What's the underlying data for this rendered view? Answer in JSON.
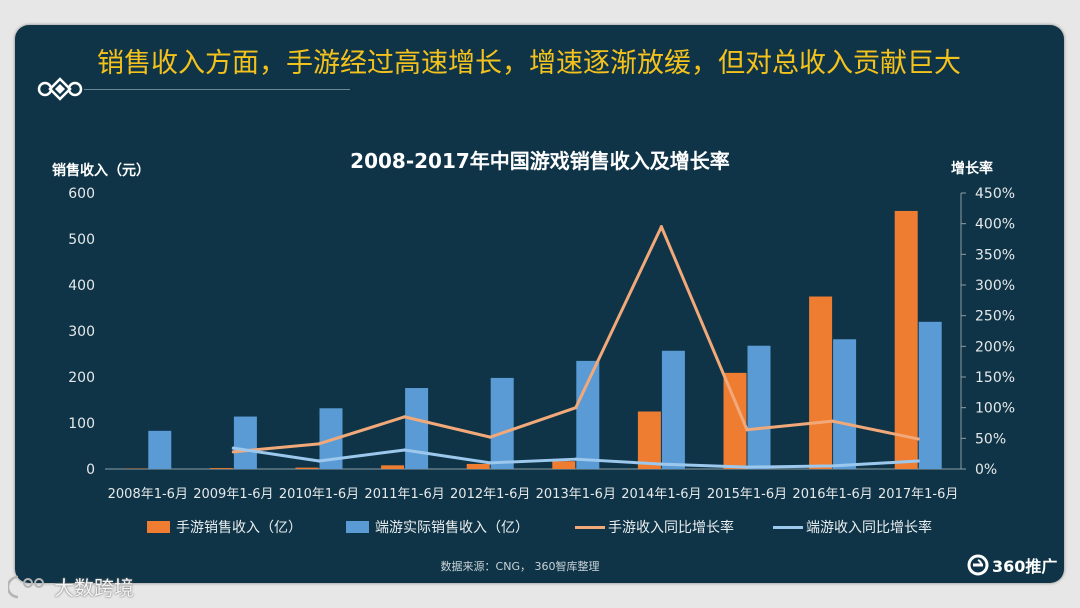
{
  "slide": {
    "headline": "销售收入方面，手游经过高速增长，增速逐渐放缓，但对总收入贡献巨大",
    "source": "数据来源：CNG， 360智库整理",
    "brand": "360推广",
    "watermark": "大数跨境"
  },
  "icons": {
    "ornament": "knot-ornament-icon",
    "brand_logo": "360-logo-icon",
    "watermark_logo": "watermark-logo-icon"
  },
  "colors": {
    "page_background": "#e7e7e7",
    "panel_background": "#0f3447",
    "headline": "#f4c21c"
  },
  "chart_data": {
    "type": "bar",
    "title": "2008-2017年中国游戏销售收入及增长率",
    "ylabel": "销售收入（元）",
    "y2label": "增长率",
    "ylim": [
      0,
      600
    ],
    "y2lim": [
      0,
      450
    ],
    "ytick_labels": [
      "0",
      "100",
      "200",
      "300",
      "400",
      "500",
      "600"
    ],
    "y2tick_labels": [
      "0%",
      "50%",
      "100%",
      "150%",
      "200%",
      "250%",
      "300%",
      "350%",
      "400%",
      "450%"
    ],
    "categories": [
      "2008年1-6月",
      "2009年1-6月",
      "2010年1-6月",
      "2011年1-6月",
      "2012年1-6月",
      "2013年1-6月",
      "2014年1-6月",
      "2015年1-6月",
      "2016年1-6月",
      "2017年1-6月"
    ],
    "series": [
      {
        "name": "手游销售收入（亿）",
        "type": "bar",
        "axis": "left",
        "color": "#ee7d31",
        "values": [
          1,
          2,
          3,
          8,
          11,
          17,
          125,
          209,
          375,
          561
        ]
      },
      {
        "name": "端游实际销售收入（亿）",
        "type": "bar",
        "axis": "left",
        "color": "#5b9bd5",
        "values": [
          83,
          114,
          132,
          176,
          198,
          235,
          257,
          268,
          282,
          320
        ]
      },
      {
        "name": "手游收入同比增长率",
        "type": "line",
        "axis": "right",
        "color": "#f2a979",
        "values": [
          null,
          28,
          41,
          85,
          52,
          100,
          395,
          64,
          78,
          49
        ]
      },
      {
        "name": "端游收入同比增长率",
        "type": "line",
        "axis": "right",
        "color": "#9cc8ee",
        "values": [
          null,
          34,
          13,
          31,
          10,
          16,
          8,
          3,
          5,
          13
        ]
      }
    ],
    "legend_position": "bottom",
    "grid": false
  }
}
